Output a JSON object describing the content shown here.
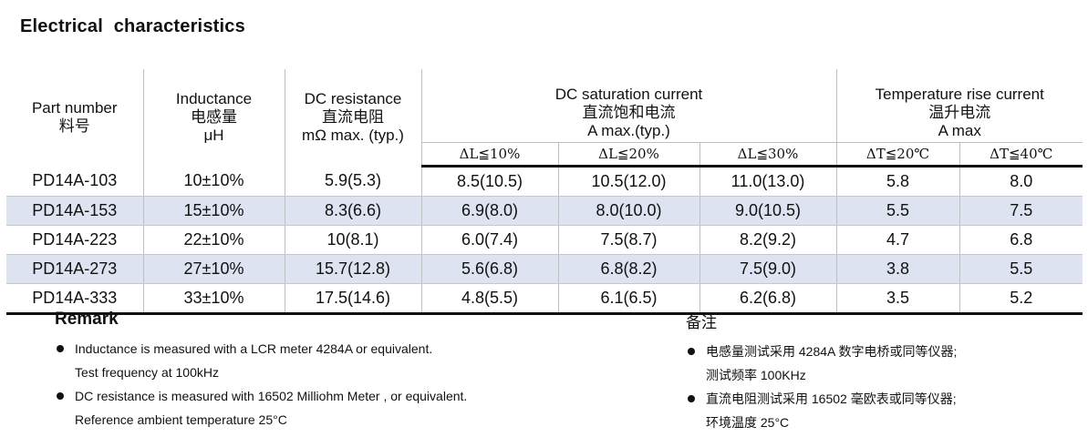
{
  "title": "Electrical  characteristics",
  "table": {
    "headers": {
      "part_number": [
        "Part number",
        "料号"
      ],
      "inductance": [
        "Inductance",
        "电感量",
        "μH"
      ],
      "dc_resistance": [
        "DC resistance",
        "直流电阻",
        "mΩ max. (typ.)"
      ],
      "dc_saturation": [
        "DC saturation current",
        "直流饱和电流",
        "A max.(typ.)"
      ],
      "temp_rise": [
        "Temperature rise current",
        "温升电流",
        "A max"
      ],
      "sat_sub": [
        "ΔL≦10%",
        "ΔL≦20%",
        "ΔL≦30%"
      ],
      "temp_sub": [
        "ΔT≦20℃",
        "ΔT≦40℃"
      ]
    },
    "rows": [
      [
        "PD14A-103",
        "10±10%",
        "5.9(5.3)",
        "8.5(10.5)",
        "10.5(12.0)",
        "11.0(13.0)",
        "5.8",
        "8.0"
      ],
      [
        "PD14A-153",
        "15±10%",
        "8.3(6.6)",
        "6.9(8.0)",
        "8.0(10.0)",
        "9.0(10.5)",
        "5.5",
        "7.5"
      ],
      [
        "PD14A-223",
        "22±10%",
        "10(8.1)",
        "6.0(7.4)",
        "7.5(8.7)",
        "8.2(9.2)",
        "4.7",
        "6.8"
      ],
      [
        "PD14A-273",
        "27±10%",
        "15.7(12.8)",
        "5.6(6.8)",
        "6.8(8.2)",
        "7.5(9.0)",
        "3.8",
        "5.5"
      ],
      [
        "PD14A-333",
        "33±10%",
        "17.5(14.6)",
        "4.8(5.5)",
        "6.1(6.5)",
        "6.2(6.8)",
        "3.5",
        "5.2"
      ]
    ]
  },
  "remark_en": {
    "title": "Remark",
    "items": [
      [
        "Inductance is measured with a LCR meter 4284A or equivalent.",
        "Test frequency at 100kHz"
      ],
      [
        "DC resistance is measured with 16502 Milliohm Meter , or equivalent.",
        "Reference ambient temperature 25°C"
      ]
    ]
  },
  "remark_cn": {
    "title": "备注",
    "items": [
      [
        "电感量测试采用 4284A  数字电桥或同等仪器;",
        "测试频率 100KHz"
      ],
      [
        "直流电阻测试采用 16502 毫欧表或同等仪器;",
        "环境温度 25°C"
      ]
    ]
  }
}
